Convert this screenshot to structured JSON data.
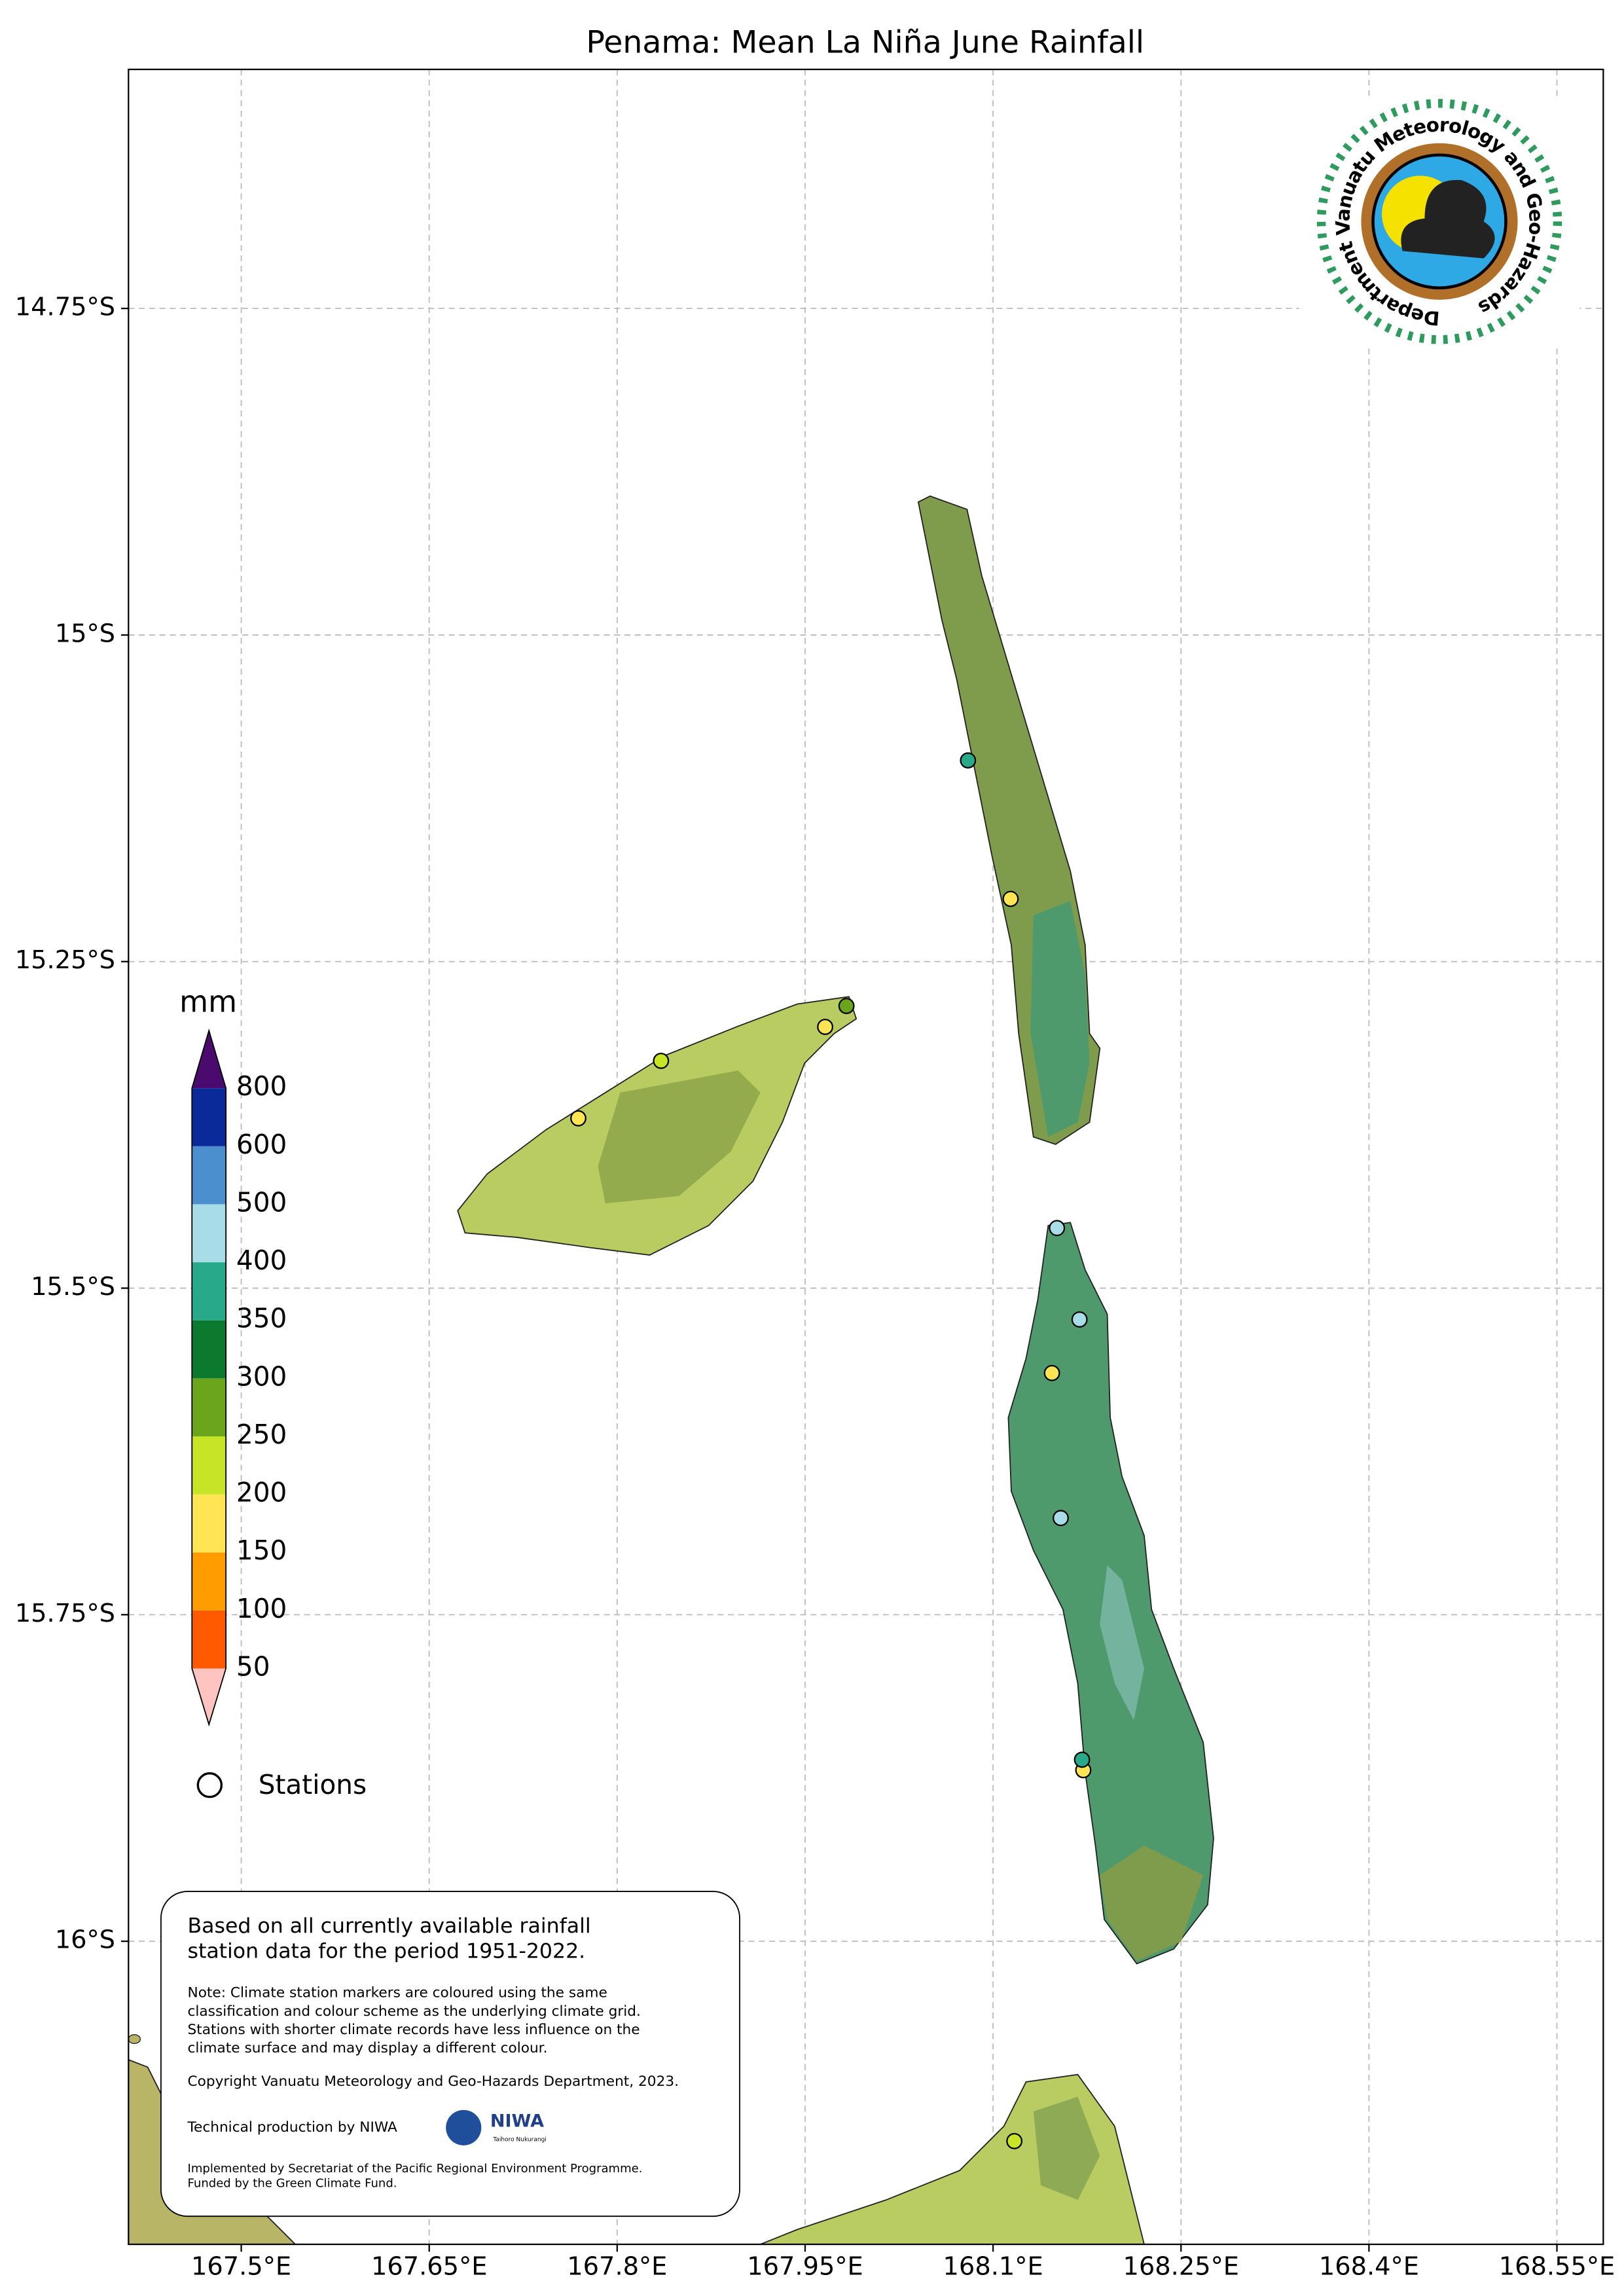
{
  "title": "Penama: Mean La Niña June Rainfall",
  "map": {
    "xlim": [
      167.41,
      168.587
    ],
    "ylim": [
      -16.232,
      -14.567
    ],
    "xticks": [
      {
        "value": 167.5,
        "label": "167.5°E"
      },
      {
        "value": 167.65,
        "label": "167.65°E"
      },
      {
        "value": 167.8,
        "label": "167.8°E"
      },
      {
        "value": 167.95,
        "label": "167.95°E"
      },
      {
        "value": 168.1,
        "label": "168.1°E"
      },
      {
        "value": 168.25,
        "label": "168.25°E"
      },
      {
        "value": 168.4,
        "label": "168.4°E"
      },
      {
        "value": 168.55,
        "label": "168.55°E"
      }
    ],
    "yticks": [
      {
        "value": -14.75,
        "label": "14.75°S"
      },
      {
        "value": -15,
        "label": "15°S"
      },
      {
        "value": -15.25,
        "label": "15.25°S"
      },
      {
        "value": -15.5,
        "label": "15.5°S"
      },
      {
        "value": -15.75,
        "label": "15.75°S"
      },
      {
        "value": -16,
        "label": "16°S"
      }
    ],
    "grid": true
  },
  "colorbar": {
    "unit": "mm",
    "levels": [
      50,
      100,
      150,
      200,
      250,
      300,
      350,
      400,
      500,
      600,
      800
    ],
    "colors": [
      "#ff5a00",
      "#ff9c00",
      "#ffe553",
      "#c7e526",
      "#6aa51c",
      "#0b7a2e",
      "#27a98a",
      "#a8dde8",
      "#4b8fcf",
      "#0b2a9a"
    ],
    "under_color": "#ffc3c0",
    "over_color": "#4b0a6e"
  },
  "stations": {
    "label": "Stations",
    "points": [
      {
        "lon": 168.08,
        "lat": -15.096,
        "value": 375
      },
      {
        "lon": 168.114,
        "lat": -15.202,
        "value": 175
      },
      {
        "lon": 167.983,
        "lat": -15.284,
        "value": 275
      },
      {
        "lon": 167.966,
        "lat": -15.3,
        "value": 175
      },
      {
        "lon": 167.835,
        "lat": -15.326,
        "value": 225
      },
      {
        "lon": 167.769,
        "lat": -15.37,
        "value": 175
      },
      {
        "lon": 168.151,
        "lat": -15.454,
        "value": 450
      },
      {
        "lon": 168.169,
        "lat": -15.524,
        "value": 450
      },
      {
        "lon": 168.147,
        "lat": -15.565,
        "value": 175
      },
      {
        "lon": 168.154,
        "lat": -15.676,
        "value": 450
      },
      {
        "lon": 168.172,
        "lat": -15.869,
        "value": 175
      },
      {
        "lon": 168.171,
        "lat": -15.861,
        "value": 375
      },
      {
        "lon": 168.117,
        "lat": -16.153,
        "value": 225
      }
    ]
  },
  "note": {
    "lead": [
      "Based on all currently available rainfall",
      "station data for the period 1951-2022."
    ],
    "body": [
      "Note: Climate station markers are coloured using the same",
      "classification and colour scheme as the underlying climate grid.",
      "Stations with shorter climate records have less influence on the",
      "climate surface and may display a different colour."
    ],
    "copyright": "Copyright Vanuatu Meteorology and Geo-Hazards Department, 2023.",
    "production": "Technical production by NIWA",
    "funding": [
      "Implemented by Secretariat of the Pacific Regional Environment Programme.",
      "Funded by the Green Climate Fund."
    ]
  },
  "logo": {
    "text": "Department Vanuatu Meteorology and Geo-Hazards"
  },
  "niwa": {
    "name": "NIWA",
    "tagline": "Taihoro Nukurangi"
  }
}
